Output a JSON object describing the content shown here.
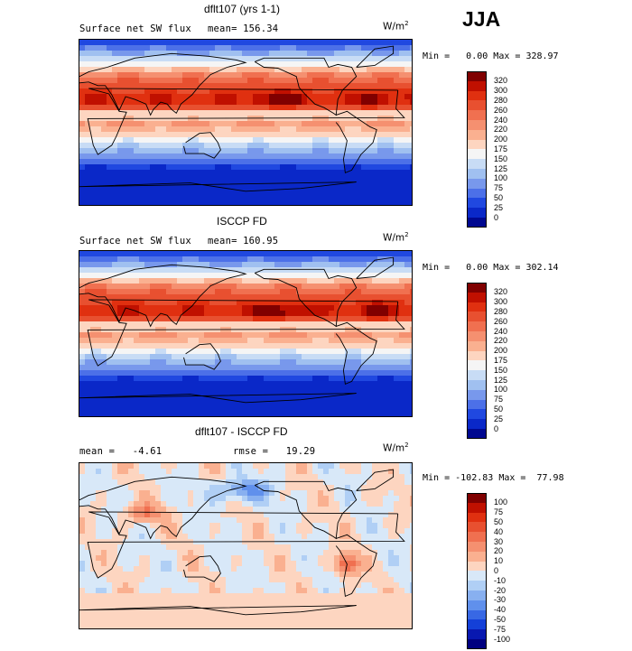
{
  "season": "JJA",
  "panels": [
    {
      "title": "dflt107 (yrs 1-1)",
      "variable": "Surface net SW flux",
      "stat1_label": "mean=",
      "stat1_value": "156.34",
      "stat2_label": "",
      "stat2_value": "",
      "units": "W/m",
      "units_exp": "2",
      "min_label": "Min =",
      "min_value": "0.00",
      "max_label": "Max =",
      "max_value": "328.97",
      "colorbar_labels": [
        "320",
        "300",
        "280",
        "260",
        "240",
        "220",
        "200",
        "175",
        "150",
        "125",
        "100",
        "75",
        "50",
        "25",
        "0"
      ],
      "map_type": "abs"
    },
    {
      "title": "ISCCP FD",
      "variable": "Surface net SW flux",
      "stat1_label": "mean=",
      "stat1_value": "160.95",
      "stat2_label": "",
      "stat2_value": "",
      "units": "W/m",
      "units_exp": "2",
      "min_label": "Min =",
      "min_value": "0.00",
      "max_label": "Max =",
      "max_value": "302.14",
      "colorbar_labels": [
        "320",
        "300",
        "280",
        "260",
        "240",
        "220",
        "200",
        "175",
        "150",
        "125",
        "100",
        "75",
        "50",
        "25",
        "0"
      ],
      "map_type": "abs"
    },
    {
      "title": "dflt107 - ISCCP FD",
      "variable": "",
      "stat1_label": "mean =",
      "stat1_value": "-4.61",
      "stat2_label": "rmse =",
      "stat2_value": "19.29",
      "units": "W/m",
      "units_exp": "2",
      "min_label": "Min =",
      "min_value": "-102.83",
      "max_label": "Max =",
      "max_value": "77.98",
      "colorbar_labels": [
        "100",
        "75",
        "50",
        "40",
        "30",
        "20",
        "10",
        "0",
        "-10",
        "-20",
        "-30",
        "-40",
        "-50",
        "-75",
        "-100"
      ],
      "map_type": "diff"
    }
  ],
  "colors": {
    "abs_scale": [
      "#800000",
      "#c01000",
      "#e03010",
      "#e85030",
      "#f07050",
      "#f59070",
      "#fab090",
      "#fdd5c0",
      "#f5f5f5",
      "#c8dcf5",
      "#a0c0f0",
      "#7898ec",
      "#4c70e8",
      "#2048e0",
      "#0a28c8",
      "#000890"
    ],
    "diff_scale": [
      "#800000",
      "#c01000",
      "#e03010",
      "#e85030",
      "#f07050",
      "#f59070",
      "#fab090",
      "#fdd5c0",
      "#d8e8f8",
      "#b0cff5",
      "#88b0f0",
      "#6090ec",
      "#3868e4",
      "#1440d8",
      "#0818b0",
      "#000080"
    ]
  }
}
